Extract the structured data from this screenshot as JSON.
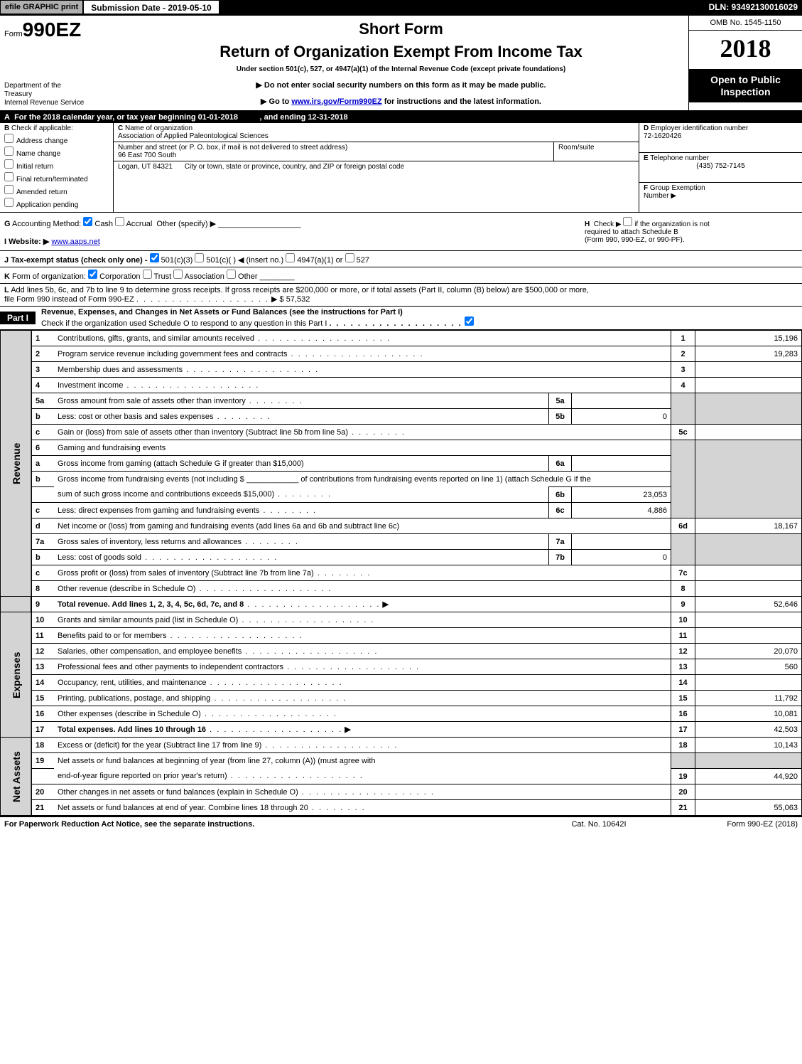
{
  "topbar": {
    "efile_label": "efile GRAPHIC print",
    "submission_label": "Submission Date - 2019-05-10",
    "dln": "DLN: 93492130016029"
  },
  "header": {
    "form_prefix": "Form",
    "form_number": "990EZ",
    "short_form": "Short Form",
    "return_title": "Return of Organization Exempt From Income Tax",
    "under_section": "Under section 501(c), 527, or 4947(a)(1) of the Internal Revenue Code (except private foundations)",
    "do_not_enter": "▶ Do not enter social security numbers on this form as it may be made public.",
    "go_to": "▶ Go to ",
    "go_to_link": "www.irs.gov/Form990EZ",
    "go_to_suffix": " for instructions and the latest information.",
    "dept1": "Department of the",
    "dept2": "Treasury",
    "dept3": "Internal Revenue Service",
    "omb": "OMB No. 1545-1150",
    "year": "2018",
    "open_public1": "Open to Public",
    "open_public2": "Inspection"
  },
  "lineA": {
    "label": "A",
    "text_pre": "For the 2018 calendar year, or tax year beginning 01-01-2018",
    "text_end": ", and ending 12-31-2018"
  },
  "sectionB": {
    "label": "B",
    "check_if": "Check if applicable:",
    "opts": {
      "address": "Address change",
      "name": "Name change",
      "initial": "Initial return",
      "final": "Final return/terminated",
      "amended": "Amended return",
      "pending": "Application pending"
    }
  },
  "sectionC": {
    "label": "C",
    "name_label": "Name of organization",
    "name_value": "Association of Applied Paleontological Sciences",
    "street_label": "Number and street (or P. O. box, if mail is not delivered to street address)",
    "street_value": "96 East 700 South",
    "room_label": "Room/suite",
    "city_label": "City or town, state or province, country, and ZIP or foreign postal code",
    "city_value": "Logan, UT  84321"
  },
  "sectionD": {
    "label": "D",
    "ein_label": "Employer identification number",
    "ein_value": "72-1620426"
  },
  "sectionE": {
    "label": "E",
    "tel_label": "Telephone number",
    "tel_value": "(435) 752-7145"
  },
  "sectionF": {
    "label": "F",
    "group_label": "Group Exemption",
    "number_label": "Number  ▶"
  },
  "sectionG": {
    "label": "G",
    "text": "Accounting Method:",
    "cash": "Cash",
    "accrual": "Accrual",
    "other": "Other (specify) ▶"
  },
  "sectionH": {
    "label": "H",
    "text1": "Check ▶",
    "text2": "if the organization is not",
    "text3": "required to attach Schedule B",
    "text4": "(Form 990, 990-EZ, or 990-PF)."
  },
  "sectionI": {
    "label": "I",
    "text": "Website: ▶",
    "link": "www.aaps.net"
  },
  "sectionJ": {
    "label": "J",
    "text": "Tax-exempt status (check only one) -",
    "o1": "501(c)(3)",
    "o2": "501(c)(  ) ◀ (insert no.)",
    "o3": "4947(a)(1) or",
    "o4": "527"
  },
  "sectionK": {
    "label": "K",
    "text": "Form of organization:",
    "corp": "Corporation",
    "trust": "Trust",
    "assoc": "Association",
    "other": "Other"
  },
  "sectionL": {
    "label": "L",
    "text1": "Add lines 5b, 6c, and 7b to line 9 to determine gross receipts. If gross receipts are $200,000 or more, or if total assets (Part II, column (B) below) are $500,000 or more,",
    "text2": "file Form 990 instead of Form 990-EZ",
    "amount": "▶ $ 57,532"
  },
  "part1": {
    "label": "Part I",
    "title": "Revenue, Expenses, and Changes in Net Assets or Fund Balances (see the instructions for Part I)",
    "check_text": "Check if the organization used Schedule O to respond to any question in this Part I"
  },
  "sections": {
    "revenue": "Revenue",
    "expenses": "Expenses",
    "netassets": "Net Assets"
  },
  "rows": {
    "r1": {
      "num": "1",
      "desc": "Contributions, gifts, grants, and similar amounts received",
      "box": "1",
      "amt": "15,196"
    },
    "r2": {
      "num": "2",
      "desc": "Program service revenue including government fees and contracts",
      "box": "2",
      "amt": "19,283"
    },
    "r3": {
      "num": "3",
      "desc": "Membership dues and assessments",
      "box": "3",
      "amt": ""
    },
    "r4": {
      "num": "4",
      "desc": "Investment income",
      "box": "4",
      "amt": ""
    },
    "r5a": {
      "num": "5a",
      "desc": "Gross amount from sale of assets other than inventory",
      "sub": "5a",
      "subval": ""
    },
    "r5b": {
      "num": "b",
      "desc": "Less: cost or other basis and sales expenses",
      "sub": "5b",
      "subval": "0"
    },
    "r5c": {
      "num": "c",
      "desc": "Gain or (loss) from sale of assets other than inventory (Subtract line 5b from line 5a)",
      "box": "5c",
      "amt": ""
    },
    "r6": {
      "num": "6",
      "desc": "Gaming and fundraising events"
    },
    "r6a": {
      "num": "a",
      "desc": "Gross income from gaming (attach Schedule G if greater than $15,000)",
      "sub": "6a",
      "subval": ""
    },
    "r6b": {
      "num": "b",
      "desc": "Gross income from fundraising events (not including $ ____________ of contributions from fundraising events reported on line 1) (attach Schedule G if the",
      "sub": "",
      "subval": ""
    },
    "r6b2": {
      "num": "",
      "desc": "sum of such gross income and contributions exceeds $15,000)",
      "sub": "6b",
      "subval": "23,053"
    },
    "r6c": {
      "num": "c",
      "desc": "Less: direct expenses from gaming and fundraising events",
      "sub": "6c",
      "subval": "4,886"
    },
    "r6d": {
      "num": "d",
      "desc": "Net income or (loss) from gaming and fundraising events (add lines 6a and 6b and subtract line 6c)",
      "box": "6d",
      "amt": "18,167"
    },
    "r7a": {
      "num": "7a",
      "desc": "Gross sales of inventory, less returns and allowances",
      "sub": "7a",
      "subval": ""
    },
    "r7b": {
      "num": "b",
      "desc": "Less: cost of goods sold",
      "sub": "7b",
      "subval": "0"
    },
    "r7c": {
      "num": "c",
      "desc": "Gross profit or (loss) from sales of inventory (Subtract line 7b from line 7a)",
      "box": "7c",
      "amt": ""
    },
    "r8": {
      "num": "8",
      "desc": "Other revenue (describe in Schedule O)",
      "box": "8",
      "amt": ""
    },
    "r9": {
      "num": "9",
      "desc": "Total revenue. Add lines 1, 2, 3, 4, 5c, 6d, 7c, and 8",
      "arrow": "▶",
      "box": "9",
      "amt": "52,646"
    },
    "r10": {
      "num": "10",
      "desc": "Grants and similar amounts paid (list in Schedule O)",
      "box": "10",
      "amt": ""
    },
    "r11": {
      "num": "11",
      "desc": "Benefits paid to or for members",
      "box": "11",
      "amt": ""
    },
    "r12": {
      "num": "12",
      "desc": "Salaries, other compensation, and employee benefits",
      "box": "12",
      "amt": "20,070"
    },
    "r13": {
      "num": "13",
      "desc": "Professional fees and other payments to independent contractors",
      "box": "13",
      "amt": "560"
    },
    "r14": {
      "num": "14",
      "desc": "Occupancy, rent, utilities, and maintenance",
      "box": "14",
      "amt": ""
    },
    "r15": {
      "num": "15",
      "desc": "Printing, publications, postage, and shipping",
      "box": "15",
      "amt": "11,792"
    },
    "r16": {
      "num": "16",
      "desc": "Other expenses (describe in Schedule O)",
      "box": "16",
      "amt": "10,081"
    },
    "r17": {
      "num": "17",
      "desc": "Total expenses. Add lines 10 through 16",
      "arrow": "▶",
      "box": "17",
      "amt": "42,503"
    },
    "r18": {
      "num": "18",
      "desc": "Excess or (deficit) for the year (Subtract line 17 from line 9)",
      "box": "18",
      "amt": "10,143"
    },
    "r19": {
      "num": "19",
      "desc": "Net assets or fund balances at beginning of year (from line 27, column (A)) (must agree with"
    },
    "r19b": {
      "num": "",
      "desc": "end-of-year figure reported on prior year's return)",
      "box": "19",
      "amt": "44,920"
    },
    "r20": {
      "num": "20",
      "desc": "Other changes in net assets or fund balances (explain in Schedule O)",
      "box": "20",
      "amt": ""
    },
    "r21": {
      "num": "21",
      "desc": "Net assets or fund balances at end of year. Combine lines 18 through 20",
      "box": "21",
      "amt": "55,063"
    }
  },
  "footer": {
    "left": "For Paperwork Reduction Act Notice, see the separate instructions.",
    "mid": "Cat. No. 10642I",
    "right": "Form 990-EZ (2018)"
  }
}
